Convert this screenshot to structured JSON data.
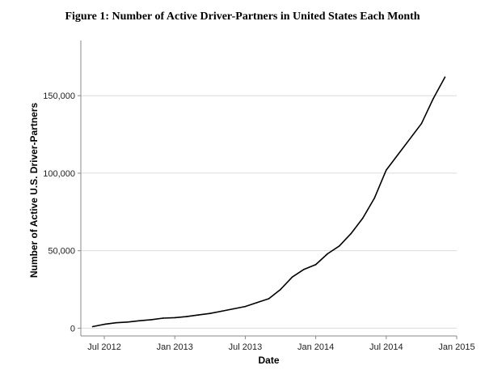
{
  "chart_data": {
    "type": "line",
    "title": "Figure 1: Number of Active Driver-Partners in United States Each Month",
    "xlabel": "Date",
    "ylabel": "Number of Active U.S. Driver-Partners",
    "x_ticks": [
      "Jul 2012",
      "Jan 2013",
      "Jul 2013",
      "Jan 2014",
      "Jul 2014",
      "Jan 2015"
    ],
    "y_ticks": [
      "0",
      "50,000",
      "100,000",
      "150,000"
    ],
    "y_tick_values": [
      0,
      50000,
      100000,
      150000
    ],
    "xlim": [
      "2012-05",
      "2015-01"
    ],
    "ylim": [
      -5000,
      183000
    ],
    "grid": "horizontal",
    "line_color": "#000000",
    "x": [
      "2012-06",
      "2012-07",
      "2012-08",
      "2012-09",
      "2012-10",
      "2012-11",
      "2012-12",
      "2013-01",
      "2013-02",
      "2013-03",
      "2013-04",
      "2013-05",
      "2013-06",
      "2013-07",
      "2013-08",
      "2013-09",
      "2013-10",
      "2013-11",
      "2013-12",
      "2014-01",
      "2014-02",
      "2014-03",
      "2014-04",
      "2014-05",
      "2014-06",
      "2014-07",
      "2014-08",
      "2014-09",
      "2014-10",
      "2014-11",
      "2014-12"
    ],
    "values": [
      1000,
      2500,
      3500,
      4000,
      4800,
      5500,
      6500,
      6800,
      7500,
      8500,
      9500,
      11000,
      12500,
      14000,
      16500,
      19000,
      25000,
      33000,
      38000,
      41000,
      48000,
      53000,
      61000,
      71000,
      84000,
      102000,
      112000,
      122000,
      132000,
      148000,
      162000
    ]
  }
}
